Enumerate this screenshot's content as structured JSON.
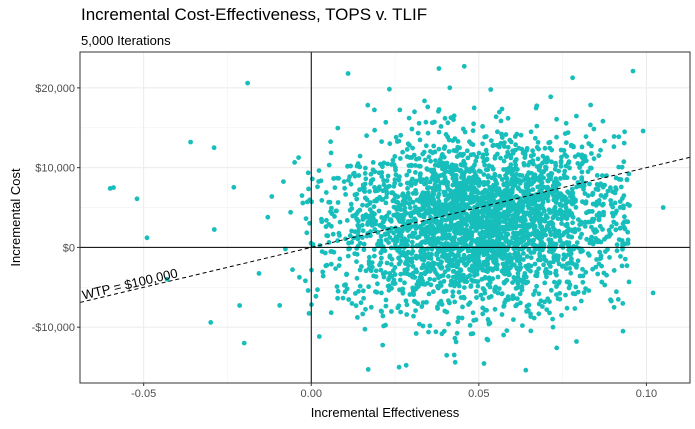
{
  "chart_data": {
    "type": "scatter",
    "title": "Incremental Cost-Effectiveness, TOPS v. TLIF",
    "subtitle": "5,000 Iterations",
    "xlabel": "Incremental Effectiveness",
    "ylabel": "Incremental Cost",
    "xlim": [
      -0.069,
      0.113
    ],
    "ylim": [
      -17000,
      24500
    ],
    "x_ticks": [
      -0.05,
      0.0,
      0.05,
      0.1
    ],
    "x_tick_labels": [
      "-0.05",
      "0.00",
      "0.05",
      "0.10"
    ],
    "y_ticks": [
      -10000,
      0,
      10000,
      20000
    ],
    "y_tick_labels": [
      "-$10,000",
      "$0",
      "$10,000",
      "$20,000"
    ],
    "grid": true,
    "reference_lines": {
      "x": 0,
      "y": 0
    },
    "wtp_line": {
      "slope": 100000,
      "intercept": 0,
      "style": "dashed",
      "label": "WTP = $100,000"
    },
    "point_color": "#17BEBB",
    "n_iterations": 5000,
    "distribution": {
      "mean_x": 0.05,
      "sd_x": 0.021,
      "mean_y": 3000,
      "sd_y": 5200,
      "rendered_points": 3200
    },
    "outliers": [
      {
        "x": -0.059,
        "y": 7500
      },
      {
        "x": -0.06,
        "y": 7400
      },
      {
        "x": -0.052,
        "y": 6100
      },
      {
        "x": -0.019,
        "y": 20600
      },
      {
        "x": 0.011,
        "y": 21800
      },
      {
        "x": 0.096,
        "y": 22100
      },
      {
        "x": 0.105,
        "y": 5000
      },
      {
        "x": 0.102,
        "y": -5700
      },
      {
        "x": -0.03,
        "y": -9400
      },
      {
        "x": -0.02,
        "y": -12000
      },
      {
        "x": 0.017,
        "y": -15300
      },
      {
        "x": 0.064,
        "y": -15400
      },
      {
        "x": -0.049,
        "y": 1200
      },
      {
        "x": -0.043,
        "y": -4000
      },
      {
        "x": -0.036,
        "y": 13200
      },
      {
        "x": -0.029,
        "y": 12500
      },
      {
        "x": 0.099,
        "y": 14600
      },
      {
        "x": 0.093,
        "y": -10500
      }
    ]
  }
}
